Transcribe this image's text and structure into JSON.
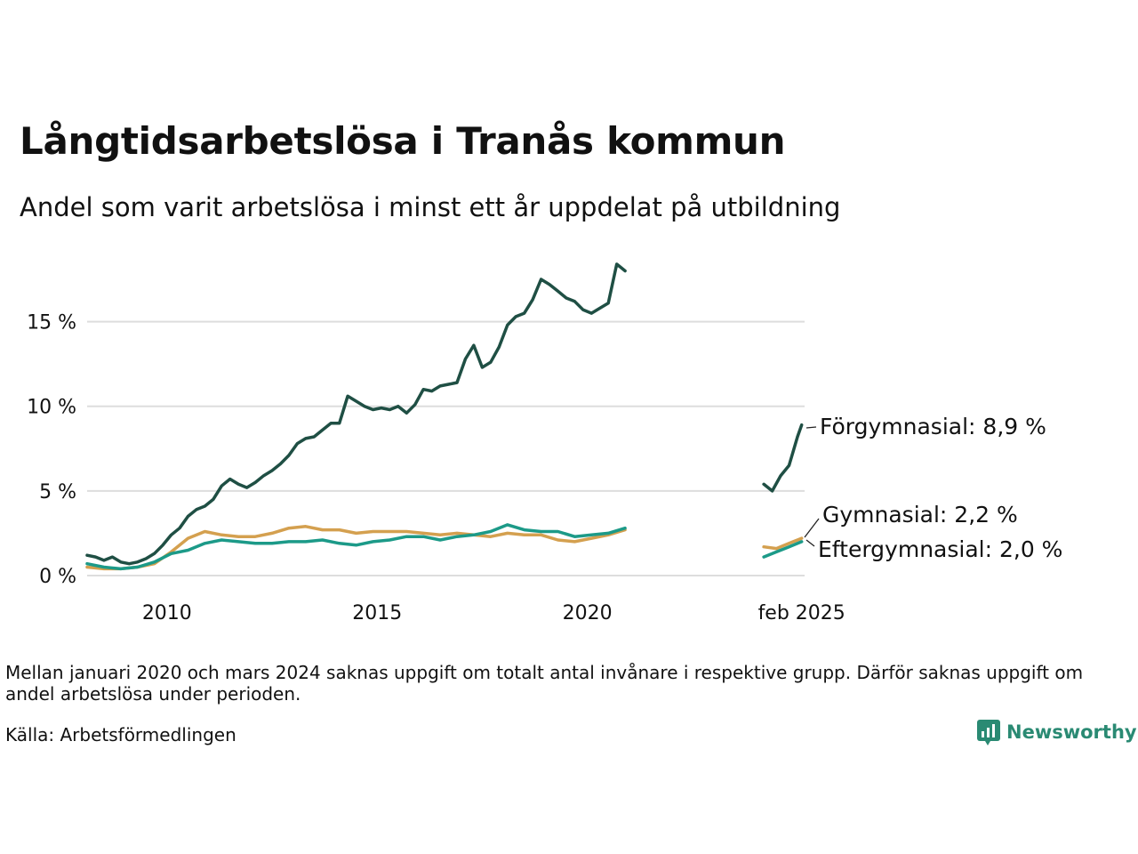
{
  "header": {
    "title": "Långtidsarbetslösa i Tranås kommun",
    "subtitle": "Andel som varit arbetslösa i minst ett år uppdelat på utbildning"
  },
  "footer": {
    "note": "Mellan januari 2020 och mars 2024 saknas uppgift om totalt antal invånare i respektive grupp. Därför saknas uppgift om andel arbetslösa under perioden.",
    "source": "Källa: Arbetsförmedlingen",
    "brand": "Newsworthy"
  },
  "colors": {
    "forgymnasial": "#1f4f44",
    "eftergymnasial": "#1c9a88",
    "gymnasial": "#d4a04f",
    "grid": "#dddddd",
    "brand": "#2a8a73"
  },
  "chart_data": {
    "type": "line",
    "x_unit": "year",
    "xlim": [
      2008.1,
      2025.17
    ],
    "ylim": [
      0,
      18.5
    ],
    "yticks": [
      {
        "value": 0,
        "label": "0 %"
      },
      {
        "value": 5,
        "label": "5 %"
      },
      {
        "value": 10,
        "label": "10 %"
      },
      {
        "value": 15,
        "label": "15 %"
      }
    ],
    "xticks": [
      {
        "value": 2010,
        "label": "2010"
      },
      {
        "value": 2015,
        "label": "2015"
      },
      {
        "value": 2020,
        "label": "2020"
      },
      {
        "value": 2025.1,
        "label": "feb 2025"
      }
    ],
    "grid": true,
    "legend": "inline end labels",
    "series": [
      {
        "name": "Förgymnasial",
        "end_label": "Förgymnasial: 8,9 %",
        "color_key": "forgymnasial",
        "segments": [
          [
            [
              2008.1,
              1.2
            ],
            [
              2008.3,
              1.1
            ],
            [
              2008.5,
              0.9
            ],
            [
              2008.7,
              1.1
            ],
            [
              2008.9,
              0.8
            ],
            [
              2009.1,
              0.7
            ],
            [
              2009.3,
              0.8
            ],
            [
              2009.5,
              1.0
            ],
            [
              2009.7,
              1.3
            ],
            [
              2009.9,
              1.8
            ],
            [
              2010.1,
              2.4
            ],
            [
              2010.3,
              2.8
            ],
            [
              2010.5,
              3.5
            ],
            [
              2010.7,
              3.9
            ],
            [
              2010.9,
              4.1
            ],
            [
              2011.1,
              4.5
            ],
            [
              2011.3,
              5.3
            ],
            [
              2011.5,
              5.7
            ],
            [
              2011.7,
              5.4
            ],
            [
              2011.9,
              5.2
            ],
            [
              2012.1,
              5.5
            ],
            [
              2012.3,
              5.9
            ],
            [
              2012.5,
              6.2
            ],
            [
              2012.7,
              6.6
            ],
            [
              2012.9,
              7.1
            ],
            [
              2013.1,
              7.8
            ],
            [
              2013.3,
              8.1
            ],
            [
              2013.5,
              8.2
            ],
            [
              2013.7,
              8.6
            ],
            [
              2013.9,
              9.0
            ],
            [
              2014.1,
              9.0
            ],
            [
              2014.3,
              10.6
            ],
            [
              2014.5,
              10.3
            ],
            [
              2014.7,
              10.0
            ],
            [
              2014.9,
              9.8
            ],
            [
              2015.1,
              9.9
            ],
            [
              2015.3,
              9.8
            ],
            [
              2015.5,
              10.0
            ],
            [
              2015.7,
              9.6
            ],
            [
              2015.9,
              10.1
            ],
            [
              2016.1,
              11.0
            ],
            [
              2016.3,
              10.9
            ],
            [
              2016.5,
              11.2
            ],
            [
              2016.7,
              11.3
            ],
            [
              2016.9,
              11.4
            ],
            [
              2017.1,
              12.8
            ],
            [
              2017.3,
              13.6
            ],
            [
              2017.5,
              12.3
            ],
            [
              2017.7,
              12.6
            ],
            [
              2017.9,
              13.5
            ],
            [
              2018.1,
              14.8
            ],
            [
              2018.3,
              15.3
            ],
            [
              2018.5,
              15.5
            ],
            [
              2018.7,
              16.3
            ],
            [
              2018.9,
              17.5
            ],
            [
              2019.1,
              17.2
            ],
            [
              2019.3,
              16.8
            ],
            [
              2019.5,
              16.4
            ],
            [
              2019.7,
              16.2
            ],
            [
              2019.9,
              15.7
            ],
            [
              2020.1,
              15.5
            ],
            [
              2020.3,
              15.8
            ],
            [
              2020.5,
              16.1
            ],
            [
              2020.7,
              18.4
            ],
            [
              2020.9,
              18.0
            ]
          ],
          [
            [
              2024.2,
              5.4
            ],
            [
              2024.4,
              5.0
            ],
            [
              2024.6,
              5.9
            ],
            [
              2024.8,
              6.5
            ],
            [
              2025.0,
              8.2
            ],
            [
              2025.1,
              8.9
            ]
          ]
        ]
      },
      {
        "name": "Gymnasial",
        "end_label": "Gymnasial: 2,2 %",
        "color_key": "gymnasial",
        "segments": [
          [
            [
              2008.1,
              0.5
            ],
            [
              2008.5,
              0.4
            ],
            [
              2008.9,
              0.4
            ],
            [
              2009.3,
              0.5
            ],
            [
              2009.7,
              0.7
            ],
            [
              2010.1,
              1.4
            ],
            [
              2010.5,
              2.2
            ],
            [
              2010.9,
              2.6
            ],
            [
              2011.3,
              2.4
            ],
            [
              2011.7,
              2.3
            ],
            [
              2012.1,
              2.3
            ],
            [
              2012.5,
              2.5
            ],
            [
              2012.9,
              2.8
            ],
            [
              2013.3,
              2.9
            ],
            [
              2013.7,
              2.7
            ],
            [
              2014.1,
              2.7
            ],
            [
              2014.5,
              2.5
            ],
            [
              2014.9,
              2.6
            ],
            [
              2015.3,
              2.6
            ],
            [
              2015.7,
              2.6
            ],
            [
              2016.1,
              2.5
            ],
            [
              2016.5,
              2.4
            ],
            [
              2016.9,
              2.5
            ],
            [
              2017.3,
              2.4
            ],
            [
              2017.7,
              2.3
            ],
            [
              2018.1,
              2.5
            ],
            [
              2018.5,
              2.4
            ],
            [
              2018.9,
              2.4
            ],
            [
              2019.3,
              2.1
            ],
            [
              2019.7,
              2.0
            ],
            [
              2020.1,
              2.2
            ],
            [
              2020.5,
              2.4
            ],
            [
              2020.9,
              2.7
            ]
          ],
          [
            [
              2024.2,
              1.7
            ],
            [
              2024.5,
              1.6
            ],
            [
              2024.8,
              1.9
            ],
            [
              2025.1,
              2.2
            ]
          ]
        ]
      },
      {
        "name": "Eftergymnasial",
        "end_label": "Eftergymnasial: 2,0 %",
        "color_key": "eftergymnasial",
        "segments": [
          [
            [
              2008.1,
              0.7
            ],
            [
              2008.5,
              0.5
            ],
            [
              2008.9,
              0.4
            ],
            [
              2009.3,
              0.5
            ],
            [
              2009.7,
              0.8
            ],
            [
              2010.1,
              1.3
            ],
            [
              2010.5,
              1.5
            ],
            [
              2010.9,
              1.9
            ],
            [
              2011.3,
              2.1
            ],
            [
              2011.7,
              2.0
            ],
            [
              2012.1,
              1.9
            ],
            [
              2012.5,
              1.9
            ],
            [
              2012.9,
              2.0
            ],
            [
              2013.3,
              2.0
            ],
            [
              2013.7,
              2.1
            ],
            [
              2014.1,
              1.9
            ],
            [
              2014.5,
              1.8
            ],
            [
              2014.9,
              2.0
            ],
            [
              2015.3,
              2.1
            ],
            [
              2015.7,
              2.3
            ],
            [
              2016.1,
              2.3
            ],
            [
              2016.5,
              2.1
            ],
            [
              2016.9,
              2.3
            ],
            [
              2017.3,
              2.4
            ],
            [
              2017.7,
              2.6
            ],
            [
              2018.1,
              3.0
            ],
            [
              2018.5,
              2.7
            ],
            [
              2018.9,
              2.6
            ],
            [
              2019.3,
              2.6
            ],
            [
              2019.7,
              2.3
            ],
            [
              2020.1,
              2.4
            ],
            [
              2020.5,
              2.5
            ],
            [
              2020.9,
              2.8
            ]
          ],
          [
            [
              2024.2,
              1.1
            ],
            [
              2024.5,
              1.4
            ],
            [
              2024.8,
              1.7
            ],
            [
              2025.1,
              2.0
            ]
          ]
        ]
      }
    ]
  }
}
